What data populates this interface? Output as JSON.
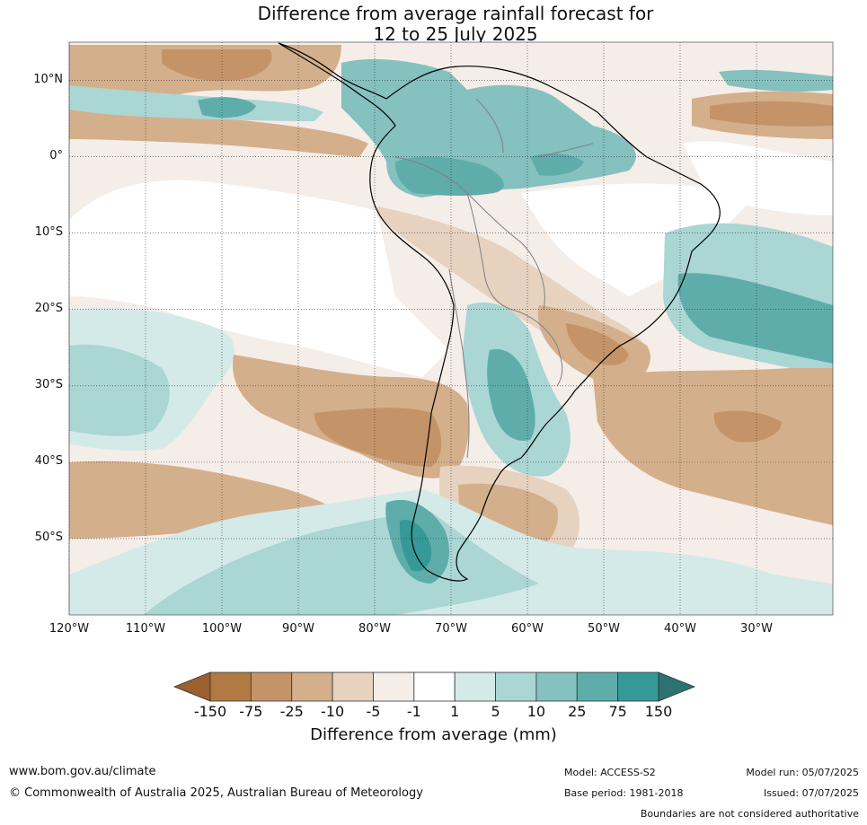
{
  "header": {
    "title_line1": "Difference from average rainfall forecast for",
    "title_line2": "12 to 25 July 2025"
  },
  "map": {
    "region": "South America",
    "projection": "equirectangular",
    "lon_range": [
      -120,
      -20
    ],
    "lat_range": [
      -60,
      15
    ],
    "lat_labels": [
      "10°N",
      "0°",
      "10°S",
      "20°S",
      "30°S",
      "40°S",
      "50°S"
    ],
    "lon_labels": [
      "120°W",
      "110°W",
      "100°W",
      "90°W",
      "80°W",
      "70°W",
      "60°W",
      "50°W",
      "40°W",
      "30°W"
    ],
    "gridlines": true,
    "coastline_color": "#000000",
    "border_color": "#808080"
  },
  "colorbar": {
    "tick_labels": [
      "-150",
      "-75",
      "-25",
      "-10",
      "-5",
      "-1",
      "1",
      "5",
      "10",
      "25",
      "75",
      "150"
    ],
    "colors": [
      "#9c5f2e",
      "#b07a42",
      "#c49468",
      "#d4af8c",
      "#e6d2bf",
      "#f5ede8",
      "#ffffff",
      "#d4eae9",
      "#aad6d4",
      "#84c1bf",
      "#5eadab",
      "#359a97",
      "#2a7370"
    ],
    "extend": "both",
    "label": "Difference from average (mm)"
  },
  "footer": {
    "url": "www.bom.gov.au/climate",
    "copyright": "© Commonwealth of Australia 2025, Australian Bureau of Meteorology",
    "model": "Model: ACCESS-S2",
    "base_period": "Base period: 1981-2018",
    "model_run": "Model run: 05/07/2025",
    "issued": "Issued: 07/07/2025",
    "disclaimer": "Boundaries are not considered authoritative"
  }
}
